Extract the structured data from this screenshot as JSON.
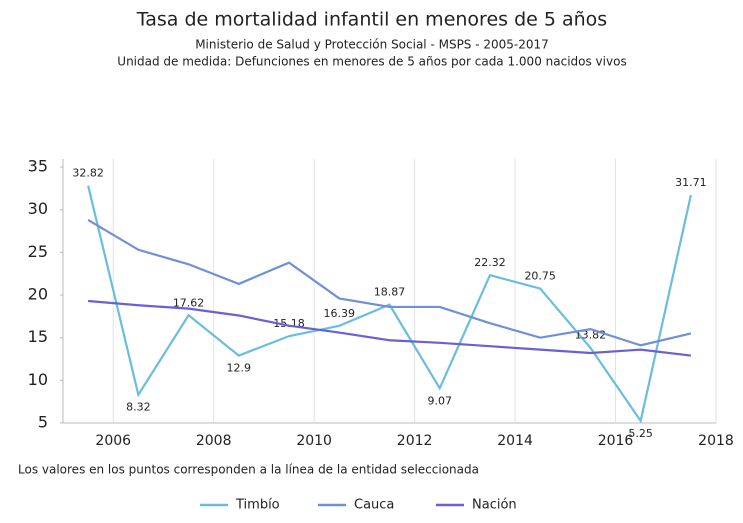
{
  "chart_data": {
    "type": "line",
    "title": "Tasa de mortalidad infantil en menores de 5 años",
    "subtitle": "Ministerio de Salud y Protección Social - MSPS - 2005-2017",
    "unit_note": "Unidad de medida: Defunciones en menores de 5 años por cada 1.000 nacidos vivos",
    "footnote": "Los valores en los puntos corresponden a la línea de la entidad seleccionada",
    "x": [
      2005.5,
      2006.5,
      2007.5,
      2008.5,
      2009.5,
      2010.5,
      2011.5,
      2012.5,
      2013.5,
      2014.5,
      2015.5,
      2016.5,
      2017.5
    ],
    "series": [
      {
        "name": "Timbío",
        "color": "#6bbde0",
        "values": [
          32.82,
          8.32,
          17.62,
          12.9,
          15.18,
          16.39,
          18.87,
          9.07,
          22.32,
          20.75,
          13.82,
          5.25,
          31.71
        ],
        "show_labels": true
      },
      {
        "name": "Cauca",
        "color": "#6f8fd8",
        "values": [
          28.8,
          25.3,
          23.6,
          21.3,
          23.8,
          19.6,
          18.6,
          18.6,
          16.7,
          15.0,
          16.0,
          14.1,
          15.5
        ]
      },
      {
        "name": "Nación",
        "color": "#6a5fd6",
        "values": [
          19.3,
          18.8,
          18.4,
          17.6,
          16.4,
          15.6,
          14.7,
          14.4,
          14.0,
          13.6,
          13.2,
          13.6,
          12.9
        ]
      }
    ],
    "xlim": [
      2005,
      2018
    ],
    "xticks": [
      2006,
      2008,
      2010,
      2012,
      2014,
      2016,
      2018
    ],
    "ylim": [
      5,
      35
    ],
    "yticks": [
      5,
      10,
      15,
      20,
      25,
      30,
      35
    ],
    "grid": true,
    "legend": "bottom"
  }
}
